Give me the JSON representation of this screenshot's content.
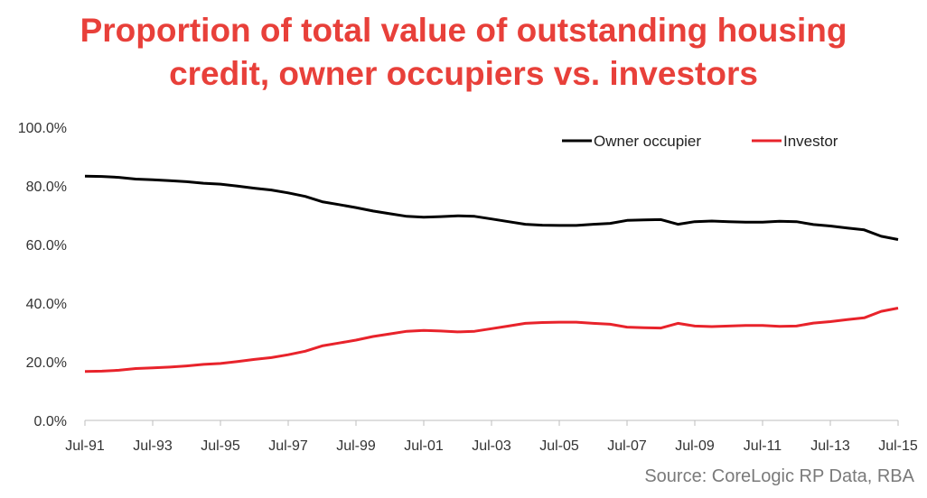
{
  "title_line1": "Proportion of total value of outstanding housing",
  "title_line2": "credit, owner occupiers vs. investors",
  "source": "Source: CoreLogic RP Data, RBA",
  "chart_data": {
    "type": "line",
    "title": "Proportion of total value of outstanding housing credit, owner occupiers vs. investors",
    "xlabel": "",
    "ylabel": "",
    "ylim": [
      0,
      100
    ],
    "y_ticks": [
      "0.0%",
      "20.0%",
      "40.0%",
      "60.0%",
      "80.0%",
      "100.0%"
    ],
    "x_ticks": [
      "Jul-91",
      "Jul-93",
      "Jul-95",
      "Jul-97",
      "Jul-99",
      "Jul-01",
      "Jul-03",
      "Jul-05",
      "Jul-07",
      "Jul-09",
      "Jul-11",
      "Jul-13",
      "Jul-15"
    ],
    "x": [
      1991.5,
      1992.0,
      1992.5,
      1993.0,
      1993.5,
      1994.0,
      1994.5,
      1995.0,
      1995.5,
      1996.0,
      1996.5,
      1997.0,
      1997.5,
      1998.0,
      1998.5,
      1999.0,
      1999.5,
      2000.0,
      2000.5,
      2001.0,
      2001.5,
      2002.0,
      2002.5,
      2003.0,
      2003.5,
      2004.0,
      2004.5,
      2005.0,
      2005.5,
      2006.0,
      2006.5,
      2007.0,
      2007.5,
      2008.0,
      2008.5,
      2009.0,
      2009.5,
      2010.0,
      2010.5,
      2011.0,
      2011.5,
      2012.0,
      2012.5,
      2013.0,
      2013.5,
      2014.0,
      2014.5,
      2015.0,
      2015.5
    ],
    "series": [
      {
        "name": "Owner occupier",
        "color": "#000000",
        "values": [
          83.3,
          83.2,
          82.9,
          82.3,
          82.1,
          81.8,
          81.4,
          80.9,
          80.6,
          79.9,
          79.2,
          78.6,
          77.6,
          76.4,
          74.6,
          73.6,
          72.6,
          71.4,
          70.5,
          69.6,
          69.3,
          69.5,
          69.8,
          69.6,
          68.7,
          67.8,
          66.9,
          66.6,
          66.5,
          66.5,
          66.9,
          67.2,
          68.2,
          68.4,
          68.5,
          66.9,
          67.8,
          68.0,
          67.8,
          67.6,
          67.6,
          67.9,
          67.8,
          66.8,
          66.3,
          65.6,
          65.0,
          62.8,
          61.7
        ]
      },
      {
        "name": "Investor",
        "color": "#e8232b",
        "values": [
          16.7,
          16.8,
          17.1,
          17.7,
          17.9,
          18.2,
          18.6,
          19.1,
          19.4,
          20.1,
          20.8,
          21.4,
          22.4,
          23.6,
          25.4,
          26.4,
          27.4,
          28.6,
          29.5,
          30.4,
          30.7,
          30.5,
          30.2,
          30.4,
          31.3,
          32.2,
          33.1,
          33.4,
          33.5,
          33.5,
          33.1,
          32.8,
          31.8,
          31.6,
          31.5,
          33.1,
          32.2,
          32.0,
          32.2,
          32.4,
          32.4,
          32.1,
          32.2,
          33.2,
          33.7,
          34.4,
          35.0,
          37.2,
          38.3
        ]
      }
    ],
    "legend_position": "top-right",
    "grid": false
  }
}
